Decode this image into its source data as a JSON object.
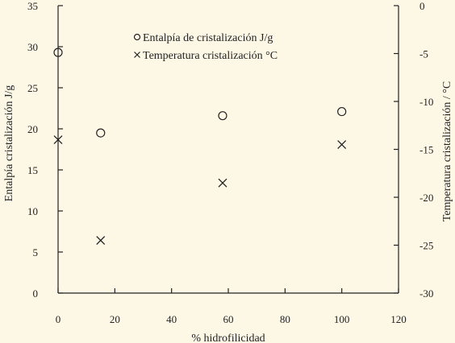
{
  "chart_data": {
    "type": "scatter",
    "x": [
      0,
      15,
      58,
      100
    ],
    "xlabel": "% hidrofilicidad",
    "xlim": [
      0,
      120
    ],
    "xticks": [
      0,
      20,
      40,
      60,
      80,
      100,
      120
    ],
    "ylabel": "Entalpía cristalización J/g",
    "ylim": [
      0,
      35
    ],
    "yticks": [
      0,
      5,
      10,
      15,
      20,
      25,
      30,
      35
    ],
    "y2label": "Temperatura cristalización / °C",
    "y2lim": [
      -30,
      0
    ],
    "y2ticks": [
      0,
      -5,
      -10,
      -15,
      -20,
      -25,
      -30
    ],
    "grid": false,
    "legend_position": "top-center",
    "series": [
      {
        "name": "Entalpía de cristalización J/g",
        "marker": "circle",
        "axis": "left",
        "values": [
          29.3,
          19.5,
          21.6,
          22.1
        ]
      },
      {
        "name": "Temperatura cristalización °C",
        "marker": "cross",
        "axis": "right",
        "values": [
          -14,
          -24.5,
          -18.5,
          -14.5
        ]
      }
    ],
    "colors": {
      "background": "#fdf8e6",
      "ink": "#222222"
    }
  }
}
